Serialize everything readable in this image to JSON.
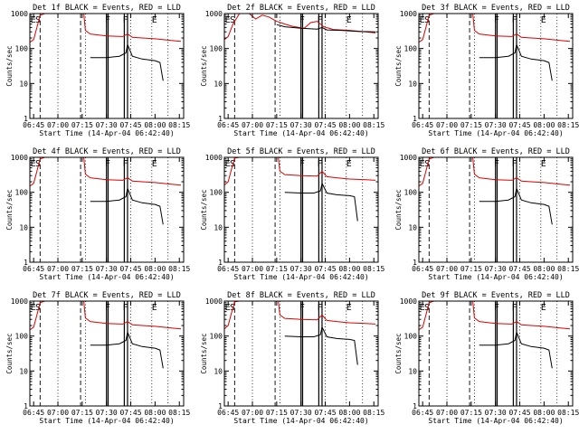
{
  "chart_data": [
    {
      "type": "line",
      "title": "Det 1f BLACK = Events, RED = LLD",
      "xlabel": "Start Time (14-Apr-04 06:42:40)",
      "ylabel": "Counts/sec",
      "x_ticks": [
        "06:45",
        "07:00",
        "07:15",
        "07:30",
        "07:45",
        "08:00",
        "08:15"
      ],
      "y_ticks": [
        "1",
        "10",
        "100",
        "1000"
      ],
      "ylim": [
        1,
        1000
      ],
      "y_scale": "log",
      "region_labels": [
        "E",
        "S",
        "F",
        "F",
        "E"
      ],
      "series": [
        {
          "name": "RED",
          "color": "#e00000",
          "x": [
            "06:42:40",
            "06:45",
            "06:47",
            "06:49",
            "06:52",
            "06:56",
            "07:05",
            "07:10",
            "07:16",
            "07:17",
            "07:20",
            "07:30",
            "07:40",
            "07:43",
            "07:46",
            "07:52",
            "08:00",
            "08:10",
            "08:16"
          ],
          "values": [
            150,
            180,
            400,
            900,
            1000,
            1000,
            1000,
            1000,
            1000,
            330,
            260,
            230,
            220,
            260,
            210,
            200,
            190,
            170,
            160
          ]
        },
        {
          "name": "BLACK",
          "color": "#000000",
          "x": [
            "07:20",
            "07:30",
            "07:38",
            "07:42",
            "07:43",
            "07:46",
            "07:52",
            "08:00",
            "08:03",
            "08:05"
          ],
          "values": [
            55,
            55,
            60,
            75,
            130,
            60,
            50,
            45,
            40,
            12
          ]
        }
      ]
    },
    {
      "type": "line",
      "title": "Det 2f BLACK = Events, RED = LLD",
      "xlabel": "Start Time (14-Apr-04 06:42:40)",
      "ylabel": "Counts/sec",
      "x_ticks": [
        "06:45",
        "07:00",
        "07:15",
        "07:30",
        "07:45",
        "08:00",
        "08:15"
      ],
      "y_ticks": [
        "1",
        "10",
        "100",
        "1000"
      ],
      "ylim": [
        1,
        1000
      ],
      "y_scale": "log",
      "region_labels": [
        "E",
        "S",
        "F",
        "F",
        "E"
      ],
      "series": [
        {
          "name": "RED",
          "color": "#e00000",
          "x": [
            "06:42:40",
            "06:45",
            "06:48",
            "06:52",
            "06:58",
            "07:02",
            "07:06",
            "07:10",
            "07:15",
            "07:20",
            "07:25",
            "07:32",
            "07:36",
            "07:40",
            "07:44",
            "07:50",
            "08:00",
            "08:10",
            "08:16"
          ],
          "values": [
            180,
            220,
            500,
            1000,
            1000,
            700,
            900,
            800,
            600,
            500,
            430,
            380,
            550,
            600,
            420,
            350,
            330,
            300,
            280
          ]
        },
        {
          "name": "BLACK",
          "color": "#000000",
          "x": [
            "07:15",
            "07:20",
            "07:30",
            "07:40",
            "07:43",
            "07:46",
            "07:55",
            "08:05",
            "08:16"
          ],
          "values": [
            480,
            420,
            380,
            360,
            400,
            340,
            330,
            310,
            300
          ]
        }
      ]
    },
    {
      "type": "line",
      "title": "Det 3f BLACK = Events, RED = LLD",
      "xlabel": "Start Time (14-Apr-04 06:42:40)",
      "ylabel": "Counts/sec",
      "x_ticks": [
        "06:45",
        "07:00",
        "07:15",
        "07:30",
        "07:45",
        "08:00",
        "08:15"
      ],
      "y_ticks": [
        "1",
        "10",
        "100",
        "1000"
      ],
      "ylim": [
        1,
        1000
      ],
      "y_scale": "log",
      "region_labels": [
        "E",
        "S",
        "F",
        "F",
        "E"
      ],
      "series": [
        {
          "name": "RED",
          "color": "#e00000",
          "x": [
            "06:42:40",
            "06:45",
            "06:47",
            "06:49",
            "06:52",
            "06:56",
            "07:05",
            "07:10",
            "07:16",
            "07:17",
            "07:20",
            "07:30",
            "07:40",
            "07:43",
            "07:46",
            "07:52",
            "08:00",
            "08:10",
            "08:16"
          ],
          "values": [
            150,
            180,
            400,
            900,
            1000,
            1000,
            1000,
            1000,
            1000,
            330,
            260,
            230,
            220,
            260,
            210,
            200,
            190,
            170,
            160
          ]
        },
        {
          "name": "BLACK",
          "color": "#000000",
          "x": [
            "07:20",
            "07:30",
            "07:38",
            "07:42",
            "07:43",
            "07:46",
            "07:52",
            "08:00",
            "08:03",
            "08:05"
          ],
          "values": [
            55,
            55,
            60,
            75,
            130,
            60,
            50,
            45,
            40,
            12
          ]
        }
      ]
    },
    {
      "type": "line",
      "title": "Det 4f BLACK = Events, RED = LLD",
      "xlabel": "Start Time (14-Apr-04 06:42:40)",
      "ylabel": "Counts/sec",
      "x_ticks": [
        "06:45",
        "07:00",
        "07:15",
        "07:30",
        "07:45",
        "08:00",
        "08:15"
      ],
      "y_ticks": [
        "1",
        "10",
        "100",
        "1000"
      ],
      "ylim": [
        1,
        1000
      ],
      "y_scale": "log",
      "region_labels": [
        "E",
        "S",
        "F",
        "F",
        "E"
      ],
      "series": [
        {
          "name": "RED",
          "color": "#e00000",
          "x": [
            "06:42:40",
            "06:45",
            "06:47",
            "06:49",
            "06:52",
            "06:56",
            "07:05",
            "07:10",
            "07:16",
            "07:17",
            "07:20",
            "07:30",
            "07:40",
            "07:43",
            "07:46",
            "07:52",
            "08:00",
            "08:10",
            "08:16"
          ],
          "values": [
            150,
            180,
            400,
            900,
            1000,
            1000,
            1000,
            1000,
            1000,
            330,
            260,
            230,
            220,
            260,
            210,
            200,
            190,
            170,
            160
          ]
        },
        {
          "name": "BLACK",
          "color": "#000000",
          "x": [
            "07:20",
            "07:30",
            "07:38",
            "07:42",
            "07:43",
            "07:46",
            "07:52",
            "08:00",
            "08:03",
            "08:05"
          ],
          "values": [
            55,
            55,
            60,
            75,
            130,
            60,
            50,
            45,
            40,
            12
          ]
        }
      ]
    },
    {
      "type": "line",
      "title": "Det 5f BLACK = Events, RED = LLD",
      "xlabel": "Start Time (14-Apr-04 06:42:40)",
      "ylabel": "Counts/sec",
      "x_ticks": [
        "06:45",
        "07:00",
        "07:15",
        "07:30",
        "07:45",
        "08:00",
        "08:15"
      ],
      "y_ticks": [
        "1",
        "10",
        "100",
        "1000"
      ],
      "ylim": [
        1,
        1000
      ],
      "y_scale": "log",
      "region_labels": [
        "E",
        "S",
        "F",
        "F",
        "E"
      ],
      "series": [
        {
          "name": "RED",
          "color": "#e00000",
          "x": [
            "06:42:40",
            "06:45",
            "06:47",
            "06:49",
            "06:52",
            "06:56",
            "07:05",
            "07:10",
            "07:16",
            "07:17",
            "07:20",
            "07:30",
            "07:40",
            "07:43",
            "07:46",
            "07:52",
            "08:00",
            "08:10",
            "08:16"
          ],
          "values": [
            160,
            200,
            450,
            950,
            1000,
            1000,
            1000,
            1000,
            1000,
            400,
            320,
            300,
            290,
            400,
            280,
            260,
            240,
            230,
            220
          ]
        },
        {
          "name": "BLACK",
          "color": "#000000",
          "x": [
            "07:20",
            "07:30",
            "07:38",
            "07:42",
            "07:43",
            "07:46",
            "07:52",
            "08:00",
            "08:03",
            "08:05"
          ],
          "values": [
            100,
            95,
            95,
            110,
            180,
            95,
            85,
            80,
            75,
            15
          ]
        }
      ]
    },
    {
      "type": "line",
      "title": "Det 6f BLACK = Events, RED = LLD",
      "xlabel": "Start Time (14-Apr-04 06:42:40)",
      "ylabel": "Counts/sec",
      "x_ticks": [
        "06:45",
        "07:00",
        "07:15",
        "07:30",
        "07:45",
        "08:00",
        "08:15"
      ],
      "y_ticks": [
        "1",
        "10",
        "100",
        "1000"
      ],
      "ylim": [
        1,
        1000
      ],
      "y_scale": "log",
      "region_labels": [
        "E",
        "S",
        "F",
        "F",
        "E"
      ],
      "series": [
        {
          "name": "RED",
          "color": "#e00000",
          "x": [
            "06:42:40",
            "06:45",
            "06:47",
            "06:49",
            "06:52",
            "06:56",
            "07:05",
            "07:10",
            "07:16",
            "07:17",
            "07:20",
            "07:30",
            "07:40",
            "07:43",
            "07:46",
            "07:52",
            "08:00",
            "08:10",
            "08:16"
          ],
          "values": [
            150,
            180,
            400,
            900,
            1000,
            1000,
            1000,
            1000,
            1000,
            330,
            260,
            230,
            220,
            260,
            210,
            200,
            190,
            170,
            160
          ]
        },
        {
          "name": "BLACK",
          "color": "#000000",
          "x": [
            "07:20",
            "07:30",
            "07:38",
            "07:42",
            "07:43",
            "07:46",
            "07:52",
            "08:00",
            "08:03",
            "08:05"
          ],
          "values": [
            55,
            55,
            60,
            75,
            130,
            60,
            50,
            45,
            40,
            12
          ]
        }
      ]
    },
    {
      "type": "line",
      "title": "Det 7f BLACK = Events, RED = LLD",
      "xlabel": "Start Time (14-Apr-04 06:42:40)",
      "ylabel": "Counts/sec",
      "x_ticks": [
        "06:45",
        "07:00",
        "07:15",
        "07:30",
        "07:45",
        "08:00",
        "08:15"
      ],
      "y_ticks": [
        "1",
        "10",
        "100",
        "1000"
      ],
      "ylim": [
        1,
        1000
      ],
      "y_scale": "log",
      "region_labels": [
        "E",
        "S",
        "F",
        "F",
        "E"
      ],
      "series": [
        {
          "name": "RED",
          "color": "#e00000",
          "x": [
            "06:42:40",
            "06:45",
            "06:47",
            "06:49",
            "06:52",
            "06:56",
            "07:05",
            "07:10",
            "07:16",
            "07:17",
            "07:20",
            "07:30",
            "07:40",
            "07:43",
            "07:46",
            "07:52",
            "08:00",
            "08:10",
            "08:16"
          ],
          "values": [
            150,
            180,
            400,
            900,
            1000,
            1000,
            1000,
            1000,
            1000,
            330,
            260,
            230,
            220,
            260,
            210,
            200,
            190,
            170,
            160
          ]
        },
        {
          "name": "BLACK",
          "color": "#000000",
          "x": [
            "07:20",
            "07:30",
            "07:38",
            "07:42",
            "07:43",
            "07:46",
            "07:52",
            "08:00",
            "08:03",
            "08:05"
          ],
          "values": [
            55,
            55,
            60,
            75,
            130,
            60,
            50,
            45,
            40,
            12
          ]
        }
      ]
    },
    {
      "type": "line",
      "title": "Det 8f BLACK = Events, RED = LLD",
      "xlabel": "Start Time (14-Apr-04 06:42:40)",
      "ylabel": "Counts/sec",
      "x_ticks": [
        "06:45",
        "07:00",
        "07:15",
        "07:30",
        "07:45",
        "08:00",
        "08:15"
      ],
      "y_ticks": [
        "1",
        "10",
        "100",
        "1000"
      ],
      "ylim": [
        1,
        1000
      ],
      "y_scale": "log",
      "region_labels": [
        "E",
        "S",
        "F",
        "F",
        "E"
      ],
      "series": [
        {
          "name": "RED",
          "color": "#e00000",
          "x": [
            "06:42:40",
            "06:45",
            "06:47",
            "06:49",
            "06:52",
            "06:56",
            "07:05",
            "07:10",
            "07:16",
            "07:17",
            "07:20",
            "07:30",
            "07:40",
            "07:43",
            "07:46",
            "07:52",
            "08:00",
            "08:10",
            "08:16"
          ],
          "values": [
            160,
            200,
            450,
            950,
            1000,
            1000,
            1000,
            1000,
            1000,
            400,
            320,
            300,
            290,
            400,
            280,
            260,
            240,
            230,
            220
          ]
        },
        {
          "name": "BLACK",
          "color": "#000000",
          "x": [
            "07:20",
            "07:30",
            "07:38",
            "07:42",
            "07:43",
            "07:46",
            "07:52",
            "08:00",
            "08:03",
            "08:05"
          ],
          "values": [
            100,
            95,
            95,
            110,
            180,
            95,
            85,
            80,
            75,
            15
          ]
        }
      ]
    },
    {
      "type": "line",
      "title": "Det 9f BLACK = Events, RED = LLD",
      "xlabel": "Start Time (14-Apr-04 06:42:40)",
      "ylabel": "Counts/sec",
      "x_ticks": [
        "06:45",
        "07:00",
        "07:15",
        "07:30",
        "07:45",
        "08:00",
        "08:15"
      ],
      "y_ticks": [
        "1",
        "10",
        "100",
        "1000"
      ],
      "ylim": [
        1,
        1000
      ],
      "y_scale": "log",
      "region_labels": [
        "E",
        "S",
        "F",
        "F",
        "E"
      ],
      "series": [
        {
          "name": "RED",
          "color": "#e00000",
          "x": [
            "06:42:40",
            "06:45",
            "06:47",
            "06:49",
            "06:52",
            "06:56",
            "07:05",
            "07:10",
            "07:16",
            "07:17",
            "07:20",
            "07:30",
            "07:40",
            "07:43",
            "07:46",
            "07:52",
            "08:00",
            "08:10",
            "08:16"
          ],
          "values": [
            150,
            180,
            400,
            900,
            1000,
            1000,
            1000,
            1000,
            1000,
            330,
            260,
            230,
            220,
            260,
            210,
            200,
            190,
            170,
            160
          ]
        },
        {
          "name": "BLACK",
          "color": "#000000",
          "x": [
            "07:20",
            "07:30",
            "07:38",
            "07:42",
            "07:43",
            "07:46",
            "07:52",
            "08:00",
            "08:03",
            "08:05"
          ],
          "values": [
            55,
            55,
            60,
            75,
            130,
            60,
            50,
            45,
            40,
            12
          ]
        }
      ]
    }
  ]
}
